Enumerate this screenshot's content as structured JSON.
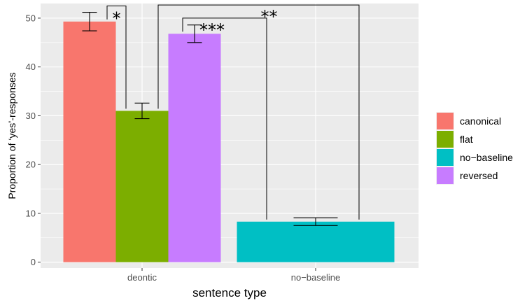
{
  "chart_data": {
    "type": "bar",
    "xlabel": "sentence type",
    "ylabel": "Proportion of ‘yes’-responses",
    "categories": [
      "deontic",
      "no−baseline"
    ],
    "ylim": [
      -1.2,
      53
    ],
    "yticks": [
      0,
      10,
      20,
      30,
      40,
      50
    ],
    "grid": true,
    "legend_position": "right",
    "series": [
      {
        "name": "canonical",
        "color": "#F8766D",
        "values": [
          49.3,
          null
        ],
        "errors": [
          1.9,
          null
        ]
      },
      {
        "name": "flat",
        "color": "#7CAE00",
        "values": [
          31.0,
          null
        ],
        "errors": [
          1.6,
          null
        ]
      },
      {
        "name": "no−baseline",
        "color": "#00BFC4",
        "values": [
          null,
          8.3
        ],
        "errors": [
          null,
          0.8
        ]
      },
      {
        "name": "reversed",
        "color": "#C77CFF",
        "values": [
          46.8,
          null
        ],
        "errors": [
          1.8,
          null
        ]
      }
    ],
    "significance": [
      {
        "label": "*",
        "from": {
          "series": 0,
          "category": 0
        },
        "to": {
          "series": 1,
          "category": 0
        },
        "level": 52.5
      },
      {
        "label": "***",
        "from": {
          "series": 3,
          "category": 0
        },
        "to": {
          "series": 2,
          "category": 1
        },
        "level": 50.0
      },
      {
        "label": "**",
        "from": {
          "series": 1,
          "category": 0
        },
        "to": {
          "series": 2,
          "category": 1
        },
        "level": 52.7
      }
    ]
  }
}
